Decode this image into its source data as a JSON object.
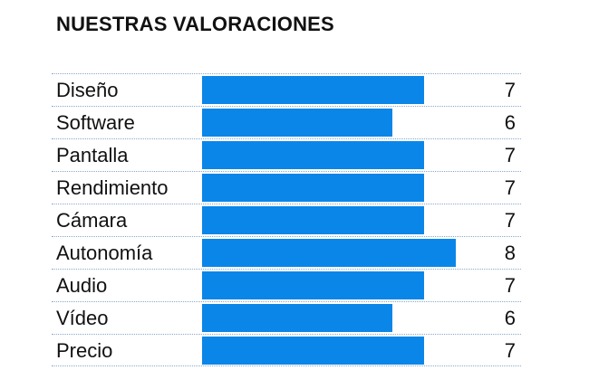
{
  "chart_data": {
    "type": "bar",
    "title": "NUESTRAS VALORACIONES",
    "orientation": "horizontal",
    "categories": [
      "Diseño",
      "Software",
      "Pantalla",
      "Rendimiento",
      "Cámara",
      "Autonomía",
      "Audio",
      "Vídeo",
      "Precio"
    ],
    "values": [
      7,
      6,
      7,
      7,
      7,
      8,
      7,
      6,
      7
    ],
    "xlim": [
      0,
      10
    ],
    "bar_color": "#0a86e8",
    "grid": false,
    "legend": "none"
  }
}
